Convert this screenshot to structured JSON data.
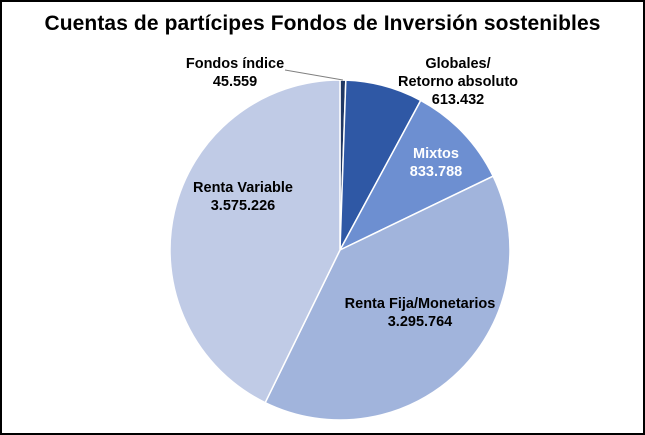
{
  "chart_data": {
    "type": "pie",
    "title": "Cuentas de partícipes Fondos de Inversión sostenibles",
    "slices": [
      {
        "label": "Fondos índice",
        "value": 45559,
        "value_text": "45.559",
        "color": "#203864",
        "text_color": "#000000"
      },
      {
        "label": "Globales/ Retorno absoluto",
        "value": 613432,
        "value_text": "613.432",
        "color": "#2f58a5",
        "text_color": "#000000"
      },
      {
        "label": "Mixtos",
        "value": 833788,
        "value_text": "833.788",
        "color": "#6d8fd1",
        "text_color": "#ffffff"
      },
      {
        "label": "Renta Fija/Monetarios",
        "value": 3295764,
        "value_text": "3.295.764",
        "color": "#a1b4dc",
        "text_color": "#000000"
      },
      {
        "label": "Renta Variable",
        "value": 3575226,
        "value_text": "3.575.226",
        "color": "#c0cbe6",
        "text_color": "#000000"
      }
    ],
    "legend": "none",
    "data_labels": "category name and value"
  }
}
